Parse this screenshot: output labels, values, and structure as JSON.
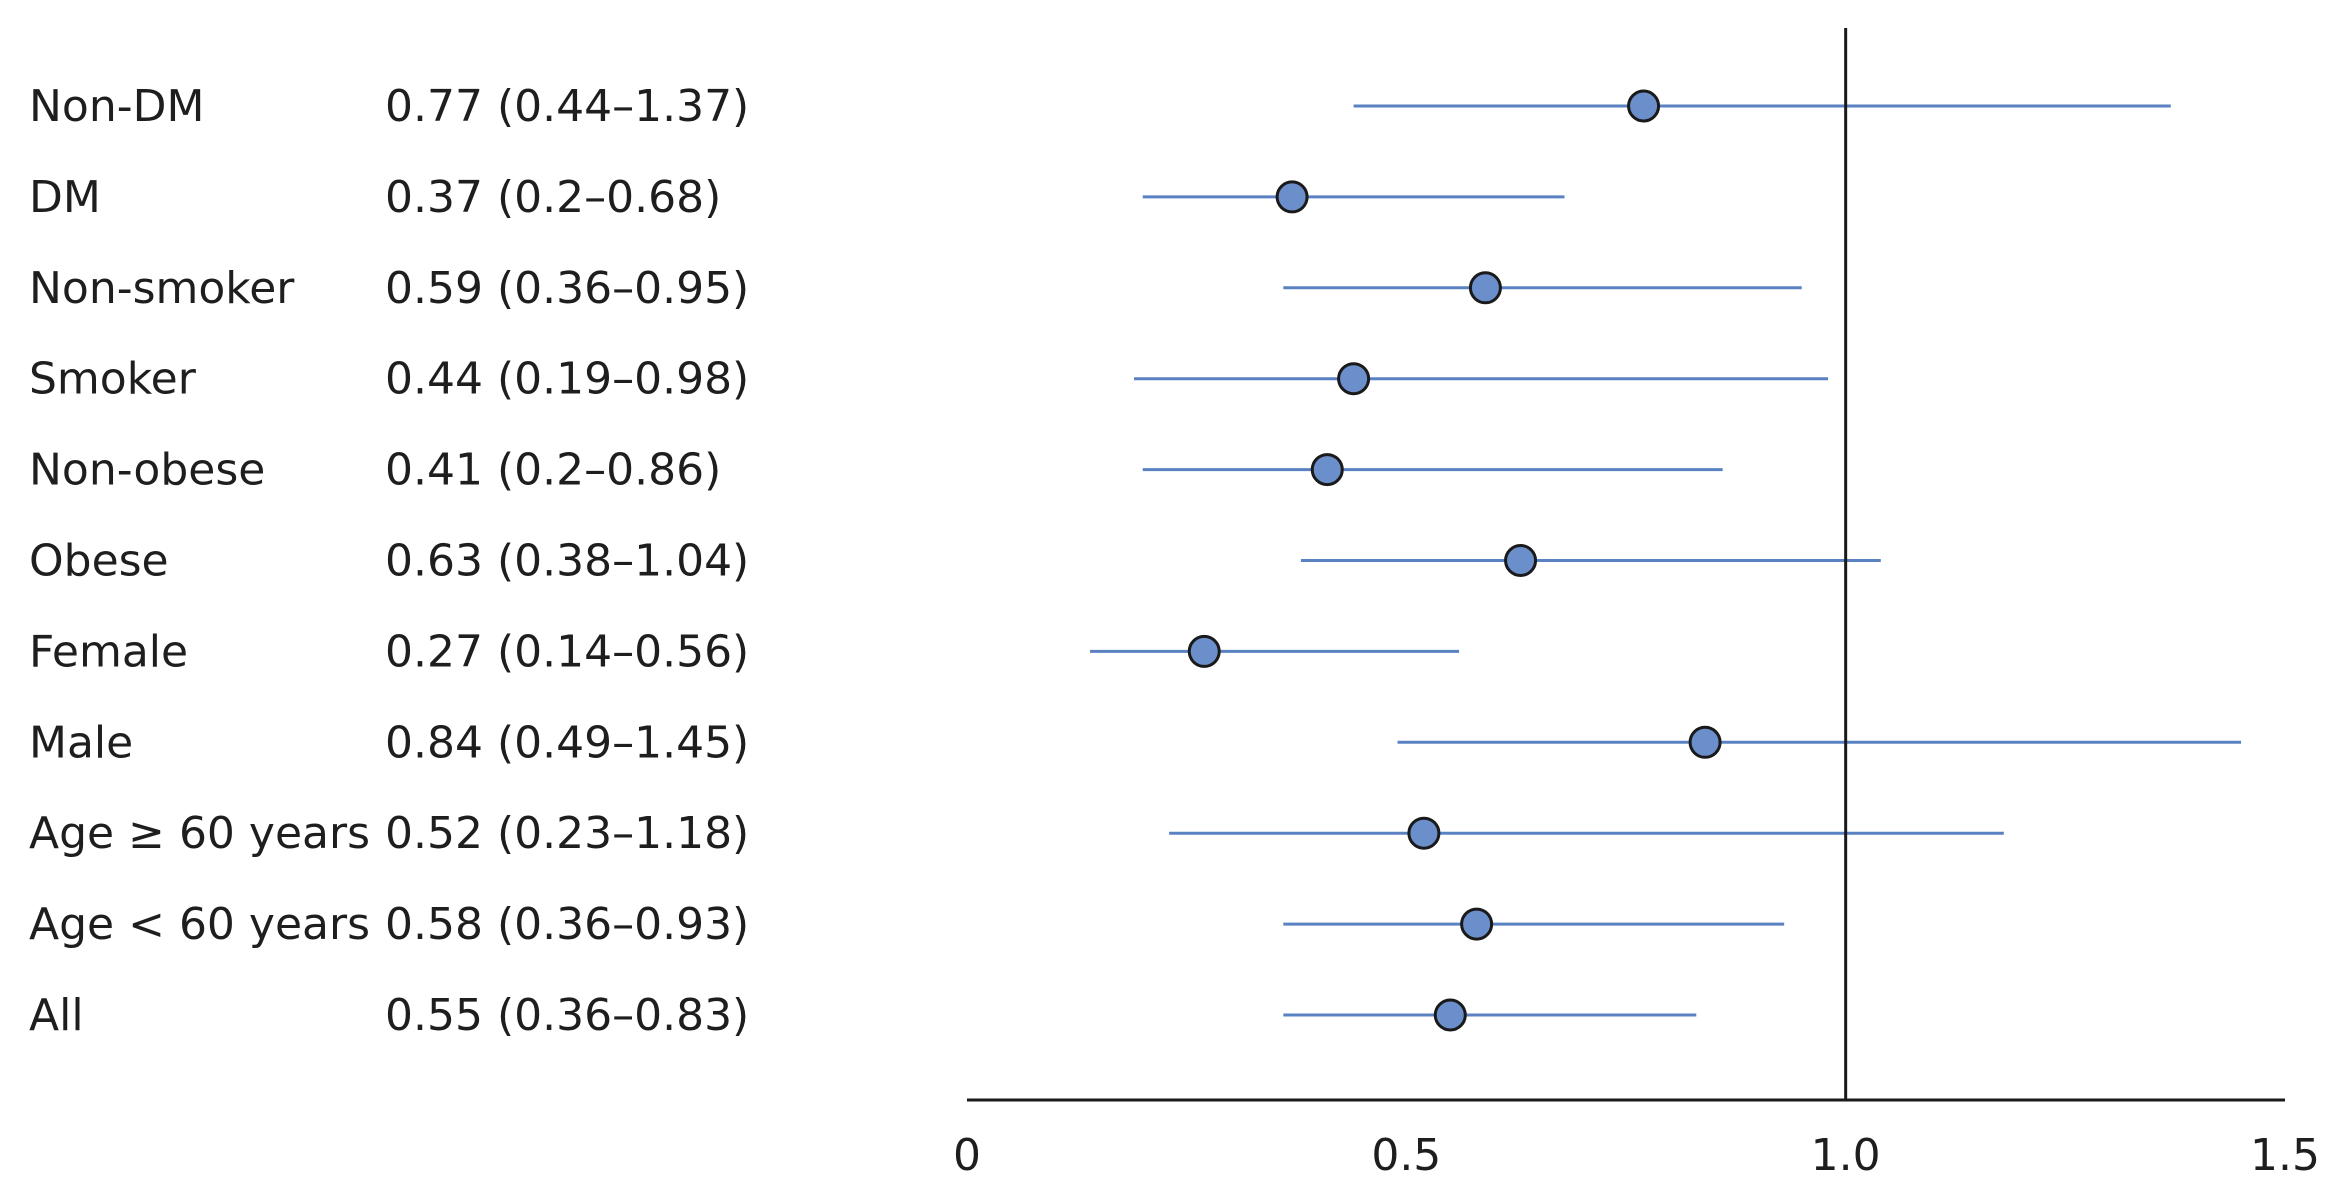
{
  "chart_data": {
    "type": "forest",
    "title": "",
    "xlabel": "",
    "ylabel": "",
    "xlim": [
      0,
      1.5
    ],
    "reference_line": 1.0,
    "x_ticks": [
      {
        "value": 0,
        "label": "0"
      },
      {
        "value": 0.5,
        "label": "0.5"
      },
      {
        "value": 1.0,
        "label": "1.0"
      },
      {
        "value": 1.5,
        "label": "1.5"
      }
    ],
    "rows": [
      {
        "label": "Non-DM",
        "estimate": 0.77,
        "lower": 0.44,
        "upper": 1.37,
        "text": "0.77 (0.44–1.37)"
      },
      {
        "label": "DM",
        "estimate": 0.37,
        "lower": 0.2,
        "upper": 0.68,
        "text": "0.37 (0.2–0.68)"
      },
      {
        "label": "Non-smoker",
        "estimate": 0.59,
        "lower": 0.36,
        "upper": 0.95,
        "text": "0.59 (0.36–0.95)"
      },
      {
        "label": "Smoker",
        "estimate": 0.44,
        "lower": 0.19,
        "upper": 0.98,
        "text": "0.44 (0.19–0.98)"
      },
      {
        "label": "Non-obese",
        "estimate": 0.41,
        "lower": 0.2,
        "upper": 0.86,
        "text": "0.41 (0.2–0.86)"
      },
      {
        "label": "Obese",
        "estimate": 0.63,
        "lower": 0.38,
        "upper": 1.04,
        "text": "0.63 (0.38–1.04)"
      },
      {
        "label": "Female",
        "estimate": 0.27,
        "lower": 0.14,
        "upper": 0.56,
        "text": "0.27 (0.14–0.56)"
      },
      {
        "label": "Male",
        "estimate": 0.84,
        "lower": 0.49,
        "upper": 1.45,
        "text": "0.84 (0.49–1.45)"
      },
      {
        "label": "Age ≥ 60 years",
        "estimate": 0.52,
        "lower": 0.23,
        "upper": 1.18,
        "text": "0.52 (0.23–1.18)"
      },
      {
        "label": "Age < 60 years",
        "estimate": 0.58,
        "lower": 0.36,
        "upper": 0.93,
        "text": "0.58 (0.36–0.93)"
      },
      {
        "label": "All",
        "estimate": 0.55,
        "lower": 0.36,
        "upper": 0.83,
        "text": "0.55 (0.36–0.83)"
      }
    ],
    "colors": {
      "ci_line": "#5a82c3",
      "point_fill": "#6b8fcb",
      "point_stroke": "#1a1a1a",
      "axis": "#1a1a1a",
      "text": "#1e1e1e"
    }
  }
}
